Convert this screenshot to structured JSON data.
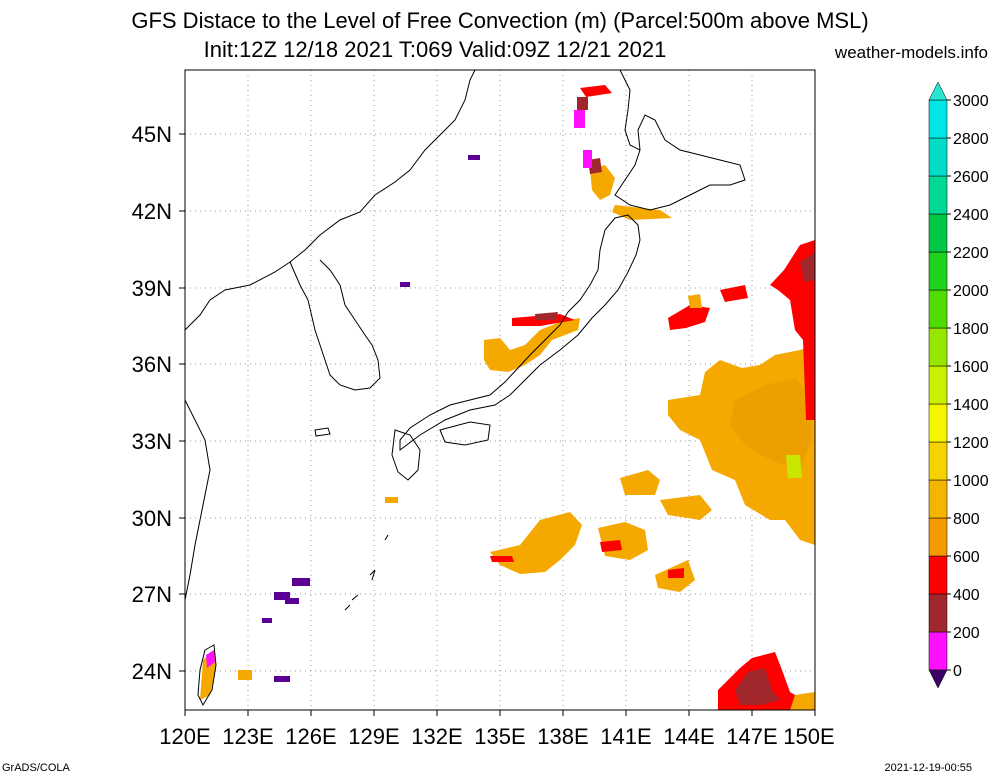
{
  "title_line1": "GFS Distace to the Level of Free Convection (m) (Parcel:500m above MSL)",
  "title_line2": "Init:12Z 12/18 2021 T:069 Valid:09Z 12/21 2021",
  "site": "weather-models.info",
  "footer_left": "GrADS/COLA",
  "footer_right": "2021-12-19-00:55",
  "lon_labels": [
    "120E",
    "123E",
    "126E",
    "129E",
    "132E",
    "135E",
    "138E",
    "141E",
    "144E",
    "147E",
    "150E"
  ],
  "lat_labels": [
    "24N",
    "27N",
    "30N",
    "33N",
    "36N",
    "39N",
    "42N",
    "45N"
  ],
  "colorbar": {
    "labels": [
      "0",
      "200",
      "400",
      "600",
      "800",
      "1000",
      "1200",
      "1400",
      "1600",
      "1800",
      "2000",
      "2200",
      "2400",
      "2600",
      "2800",
      "3000"
    ],
    "colors": [
      "#5a0096",
      "#ff10ff",
      "#a0282d",
      "#ff0000",
      "#f59a00",
      "#f5b400",
      "#f5d200",
      "#f5f500",
      "#c8f000",
      "#96e600",
      "#50dc00",
      "#1ed21e",
      "#00c846",
      "#00d896",
      "#00dcc8",
      "#00e6e6"
    ],
    "below_color": "#3c0064",
    "above_color": "#28e6d2"
  }
}
